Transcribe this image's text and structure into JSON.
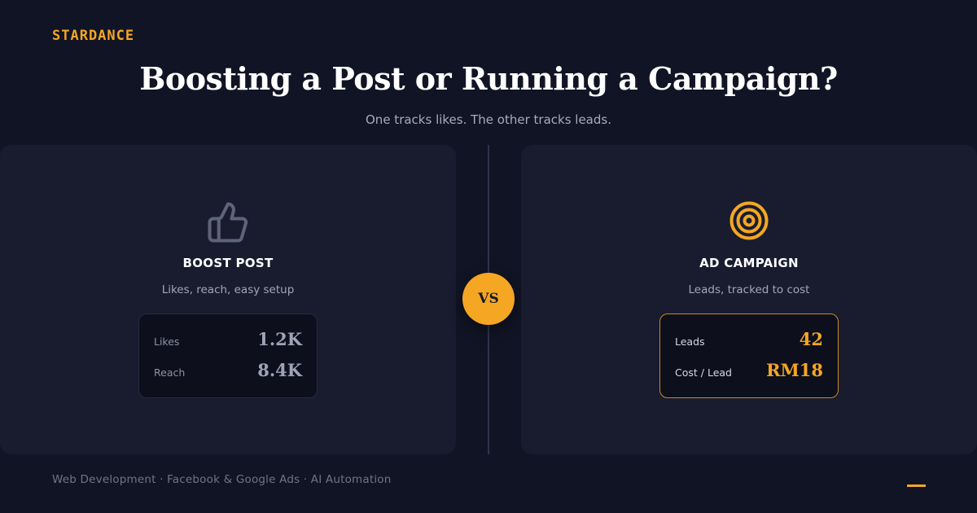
{
  "brand": "STARDANCE",
  "header": {
    "title": "Boosting a Post or Running a Campaign?",
    "subtitle": "One tracks likes. The other tracks leads."
  },
  "left_panel": {
    "icon": "thumbs-up-icon",
    "title": "BOOST POST",
    "description": "Likes, reach, easy setup",
    "stats": [
      {
        "label": "Likes",
        "value": "1.2K"
      },
      {
        "label": "Reach",
        "value": "8.4K"
      }
    ]
  },
  "vs_label": "VS",
  "right_panel": {
    "icon": "target-icon",
    "title": "AD CAMPAIGN",
    "description": "Leads, tracked to cost",
    "stats": [
      {
        "label": "Leads",
        "value": "42"
      },
      {
        "label": "Cost / Lead",
        "value": "RM18"
      }
    ]
  },
  "footer": "Web Development · Facebook & Google Ads · AI Automation",
  "colors": {
    "background": "#111424",
    "panel": "#181c2e",
    "accent": "#f5a623",
    "muted_icon": "#5e6479"
  }
}
